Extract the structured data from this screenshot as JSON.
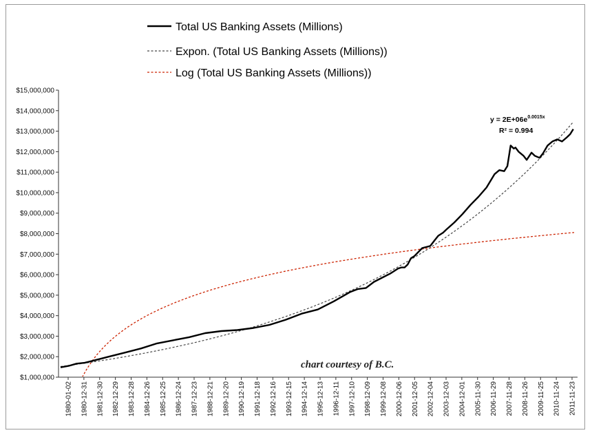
{
  "chart_data": {
    "type": "line",
    "title": "",
    "xlabel": "",
    "ylabel": "",
    "ylim": [
      1000000,
      15000000
    ],
    "y_ticks": [
      1000000,
      2000000,
      3000000,
      4000000,
      5000000,
      6000000,
      7000000,
      8000000,
      9000000,
      10000000,
      11000000,
      12000000,
      13000000,
      14000000,
      15000000
    ],
    "y_tick_labels": [
      "$1,000,000",
      "$2,000,000",
      "$3,000,000",
      "$4,000,000",
      "$5,000,000",
      "$6,000,000",
      "$7,000,000",
      "$8,000,000",
      "$9,000,000",
      "$10,000,000",
      "$11,000,000",
      "$12,000,000",
      "$13,000,000",
      "$14,000,000",
      "$15,000,000"
    ],
    "x_tick_labels": [
      "1980-01-02",
      "1980-12-31",
      "1981-12-30",
      "1982-12-29",
      "1983-12-28",
      "1984-12-26",
      "1985-12-25",
      "1986-12-24",
      "1987-12-23",
      "1988-12-21",
      "1989-12-20",
      "1990-12-19",
      "1991-12-18",
      "1992-12-16",
      "1993-12-15",
      "1994-12-14",
      "1995-12-13",
      "1996-12-11",
      "1997-12-10",
      "1998-12-09",
      "1999-12-08",
      "2000-12-06",
      "2001-12-05",
      "2002-12-04",
      "2003-12-03",
      "2004-12-01",
      "2005-11-30",
      "2006-11-29",
      "2007-11-28",
      "2008-11-26",
      "2009-11-25",
      "2010-11-24",
      "2011-11-23"
    ],
    "grid": false,
    "legend_position": "top",
    "legend": [
      {
        "label": "Total US Banking Assets (Millions)",
        "style": "solid",
        "color": "#000000"
      },
      {
        "label": "Expon. (Total US Banking Assets (Millions))",
        "style": "dashed",
        "color": "#444444"
      },
      {
        "label": "Log (Total US Banking Assets (Millions))",
        "style": "dashed",
        "color": "#cc2200"
      }
    ],
    "series": [
      {
        "name": "Total US Banking Assets (Millions)",
        "x": [
          1980.0,
          1980.5,
          1981.0,
          1981.5,
          1982.0,
          1983.0,
          1984.0,
          1985.0,
          1986.0,
          1987.0,
          1988.0,
          1989.0,
          1990.0,
          1991.0,
          1992.0,
          1993.0,
          1994.0,
          1995.0,
          1996.0,
          1997.0,
          1998.0,
          1998.5,
          1999.0,
          1999.5,
          2000.0,
          2000.5,
          2001.0,
          2001.2,
          2001.4,
          2001.6,
          2001.8,
          2002.0,
          2002.5,
          2003.0,
          2003.3,
          2003.5,
          2003.8,
          2004.0,
          2004.5,
          2005.0,
          2005.5,
          2006.0,
          2006.5,
          2007.0,
          2007.3,
          2007.6,
          2007.8,
          2008.0,
          2008.2,
          2008.3,
          2008.5,
          2008.8,
          2009.0,
          2009.3,
          2009.5,
          2009.8,
          2010.0,
          2010.3,
          2010.6,
          2010.9,
          2011.2,
          2011.5,
          2011.7,
          2011.9
        ],
        "values": [
          1480000,
          1550000,
          1660000,
          1700000,
          1800000,
          2000000,
          2200000,
          2400000,
          2650000,
          2800000,
          2950000,
          3150000,
          3250000,
          3300000,
          3400000,
          3550000,
          3800000,
          4100000,
          4300000,
          4700000,
          5150000,
          5300000,
          5350000,
          5650000,
          5850000,
          6050000,
          6300000,
          6350000,
          6350000,
          6500000,
          6800000,
          6900000,
          7300000,
          7400000,
          7700000,
          7900000,
          8050000,
          8200000,
          8550000,
          8950000,
          9400000,
          9800000,
          10250000,
          10900000,
          11100000,
          11050000,
          11300000,
          12300000,
          12150000,
          12200000,
          12000000,
          11800000,
          11600000,
          11950000,
          11800000,
          11700000,
          11900000,
          12300000,
          12500000,
          12600000,
          12500000,
          12700000,
          12850000,
          13100000
        ],
        "color": "#000000"
      },
      {
        "name": "Expon. (Total US Banking Assets (Millions))",
        "type": "exponential_trendline",
        "color": "#444444"
      },
      {
        "name": "Log (Total US Banking Assets (Millions))",
        "type": "log_trendline",
        "color": "#cc2200"
      }
    ],
    "annotations": [
      {
        "text": "y = 2E+06e",
        "superscript": "0.0015x"
      },
      {
        "text": "R² = 0.994"
      },
      {
        "text": "chart courtesy of B.C."
      }
    ]
  }
}
